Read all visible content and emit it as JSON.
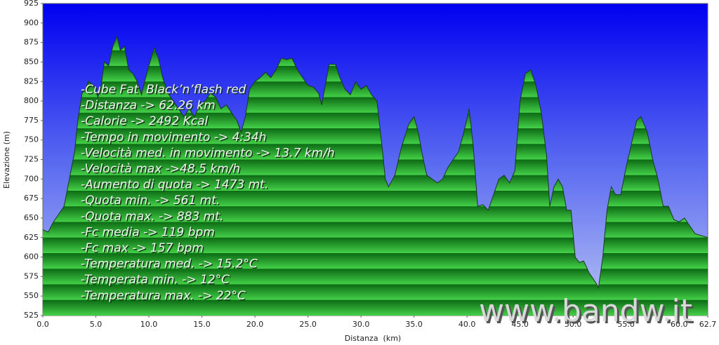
{
  "chart_data": {
    "type": "area",
    "xlabel": "Distanza  (km)",
    "ylabel": "Elevazione (m)",
    "x": [
      0,
      0.5,
      1,
      1.5,
      2,
      2.5,
      3,
      3.3,
      3.7,
      4,
      4.3,
      4.8,
      5.2,
      5.5,
      5.8,
      6.2,
      6.6,
      7.0,
      7.3,
      7.7,
      8.1,
      8.5,
      8.9,
      9.3,
      9.6,
      10.0,
      10.5,
      10.9,
      11.3,
      11.8,
      12.3,
      12.8,
      13.3,
      13.8,
      14.3,
      14.8,
      15.3,
      15.8,
      16.3,
      16.8,
      17.3,
      17.8,
      18.3,
      18.7,
      19.1,
      19.5,
      20.0,
      20.5,
      21.0,
      21.5,
      22.0,
      22.5,
      23.0,
      23.5,
      24.0,
      24.5,
      25.0,
      25.5,
      26.0,
      26.3,
      26.7,
      27.0,
      27.6,
      28.0,
      28.5,
      29.0,
      29.5,
      30.0,
      30.5,
      31.0,
      31.5,
      32.0,
      32.3,
      32.6,
      33.2,
      33.8,
      34.5,
      35.0,
      35.4,
      35.8,
      36.2,
      36.7,
      37.2,
      37.7,
      38.2,
      38.7,
      39.2,
      39.7,
      40.2,
      40.6,
      41.0,
      41.5,
      42.0,
      42.5,
      43.0,
      43.5,
      44.0,
      44.5,
      45.0,
      45.5,
      46.0,
      46.5,
      47.0,
      47.5,
      47.8,
      48.2,
      48.6,
      49.0,
      49.4,
      49.8,
      50.2,
      50.6,
      51.0,
      51.5,
      52.0,
      52.4,
      52.8,
      53.2,
      53.6,
      54.0,
      54.5,
      55.0,
      55.5,
      56.0,
      56.4,
      57.0,
      57.5,
      58.0,
      58.5,
      59.0,
      59.5,
      60.0,
      60.5,
      61.0,
      61.5,
      62.7
    ],
    "values": [
      635,
      632,
      645,
      655,
      665,
      700,
      735,
      775,
      810,
      815,
      825,
      820,
      805,
      820,
      850,
      845,
      870,
      883,
      865,
      870,
      840,
      835,
      825,
      808,
      825,
      845,
      868,
      855,
      830,
      810,
      800,
      790,
      780,
      790,
      780,
      795,
      800,
      810,
      805,
      790,
      795,
      785,
      775,
      760,
      780,
      815,
      825,
      830,
      837,
      830,
      840,
      855,
      853,
      855,
      840,
      830,
      820,
      818,
      810,
      795,
      825,
      847,
      847,
      830,
      815,
      808,
      825,
      815,
      820,
      808,
      800,
      740,
      700,
      690,
      705,
      740,
      770,
      780,
      760,
      730,
      705,
      700,
      695,
      700,
      715,
      725,
      735,
      760,
      790,
      740,
      665,
      667,
      660,
      680,
      700,
      705,
      695,
      710,
      800,
      835,
      840,
      820,
      785,
      730,
      665,
      690,
      700,
      690,
      660,
      660,
      600,
      593,
      595,
      580,
      570,
      561,
      600,
      660,
      690,
      680,
      680,
      715,
      745,
      775,
      780,
      760,
      725,
      700,
      665,
      665,
      648,
      645,
      650,
      640,
      630,
      625
    ],
    "xlim": [
      0,
      62.7
    ],
    "ylim": [
      525,
      925
    ],
    "xticks": [
      {
        "value": 0,
        "label": "0.0"
      },
      {
        "value": 5,
        "label": "5.0"
      },
      {
        "value": 10,
        "label": "10.0"
      },
      {
        "value": 15,
        "label": "15.0"
      },
      {
        "value": 20,
        "label": "20.0"
      },
      {
        "value": 25,
        "label": "25.0"
      },
      {
        "value": 30,
        "label": "30.0"
      },
      {
        "value": 35,
        "label": "35.0"
      },
      {
        "value": 40,
        "label": "40.0"
      },
      {
        "value": 45,
        "label": "45.0"
      },
      {
        "value": 50,
        "label": "50.0"
      },
      {
        "value": 55,
        "label": "55.0"
      },
      {
        "value": 60,
        "label": "60.0"
      },
      62.7
    ],
    "yticks": [
      525,
      550,
      575,
      600,
      625,
      650,
      675,
      700,
      725,
      750,
      775,
      800,
      825,
      850,
      875,
      900,
      925
    ],
    "annotations": [
      "-Cube Fat  Black’n’flash red",
      "-Distanza -> 62.26 km",
      "-Calorie -> 2492 Kcal",
      "-Tempo in movimento -> 4:34h",
      "-Velocità med. in movimento -> 13.7 km/h",
      "-Velocità max ->48.5 km/h",
      "-Aumento di quota -> 1473 mt.",
      "-Quota min. -> 561 mt.",
      "-Quota max. -> 883 mt.",
      "-Fc media -> 119 bpm",
      "-Fc max -> 157 bpm",
      "-Temperatura med. -> 15.2°C",
      "-Temperata min. -> 12°C",
      "-Temperatura max. -> 22°C"
    ],
    "watermark": "www.bandw.it"
  }
}
